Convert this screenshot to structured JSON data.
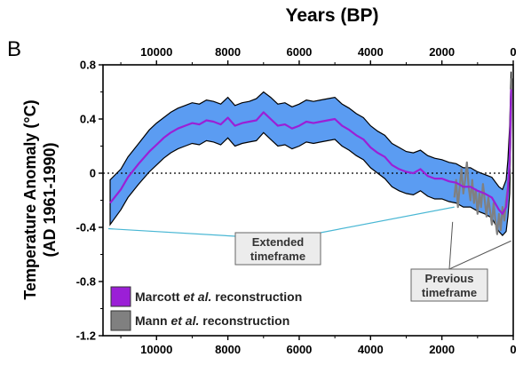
{
  "panel_letter": "B",
  "chart_data": {
    "type": "line",
    "title": "",
    "xlabel": "Years (BP)",
    "ylabel_line1": "Temperature Anomaly (°C)",
    "ylabel_line2": "(AD 1961-1990)",
    "xlim": [
      11500,
      0
    ],
    "ylim": [
      -1.2,
      0.8
    ],
    "x_ticks": [
      10000,
      8000,
      6000,
      4000,
      2000,
      0
    ],
    "x_tick_labels": [
      "10000",
      "8000",
      "6000",
      "4000",
      "2000",
      "0"
    ],
    "y_ticks": [
      0.8,
      0.4,
      0,
      -0.4,
      -0.8,
      -1.2
    ],
    "y_tick_labels": [
      "0.8",
      "0.4",
      "0",
      "-0.4",
      "-0.8",
      "-1.2"
    ],
    "zero_line": true,
    "series": [
      {
        "name": "Marcott et al. reconstruction",
        "color": "#9b1fd6",
        "band_color": "#5b9cf2",
        "x": [
          11300,
          11000,
          10800,
          10500,
          10200,
          10000,
          9800,
          9600,
          9400,
          9200,
          9000,
          8800,
          8600,
          8400,
          8200,
          8000,
          7800,
          7600,
          7400,
          7200,
          7000,
          6800,
          6600,
          6400,
          6200,
          6000,
          5800,
          5600,
          5400,
          5200,
          5000,
          4800,
          4600,
          4400,
          4200,
          4000,
          3800,
          3600,
          3400,
          3200,
          3000,
          2800,
          2600,
          2400,
          2200,
          2000,
          1800,
          1600,
          1400,
          1200,
          1000,
          800,
          600,
          400,
          300,
          200,
          150,
          100,
          60
        ],
        "y": [
          -0.22,
          -0.12,
          -0.03,
          0.07,
          0.16,
          0.21,
          0.26,
          0.3,
          0.33,
          0.35,
          0.37,
          0.36,
          0.39,
          0.38,
          0.36,
          0.41,
          0.35,
          0.37,
          0.38,
          0.39,
          0.45,
          0.4,
          0.35,
          0.36,
          0.33,
          0.35,
          0.38,
          0.37,
          0.38,
          0.39,
          0.4,
          0.35,
          0.32,
          0.28,
          0.25,
          0.19,
          0.15,
          0.12,
          0.06,
          0.03,
          0.01,
          0.0,
          0.03,
          -0.02,
          -0.04,
          -0.04,
          -0.06,
          -0.07,
          -0.1,
          -0.1,
          -0.13,
          -0.15,
          -0.18,
          -0.27,
          -0.3,
          -0.25,
          -0.12,
          0.1,
          0.62
        ],
        "upper": [
          -0.05,
          0.03,
          0.12,
          0.22,
          0.32,
          0.37,
          0.41,
          0.45,
          0.48,
          0.5,
          0.52,
          0.51,
          0.54,
          0.53,
          0.51,
          0.56,
          0.5,
          0.52,
          0.53,
          0.55,
          0.6,
          0.56,
          0.51,
          0.52,
          0.49,
          0.51,
          0.54,
          0.53,
          0.54,
          0.55,
          0.56,
          0.51,
          0.48,
          0.44,
          0.41,
          0.35,
          0.31,
          0.28,
          0.22,
          0.19,
          0.16,
          0.15,
          0.17,
          0.13,
          0.11,
          0.1,
          0.08,
          0.07,
          0.04,
          0.04,
          0.01,
          -0.01,
          -0.03,
          -0.1,
          -0.12,
          -0.05,
          0.1,
          0.35,
          0.75
        ],
        "lower": [
          -0.38,
          -0.27,
          -0.18,
          -0.08,
          0.01,
          0.06,
          0.11,
          0.15,
          0.18,
          0.2,
          0.22,
          0.21,
          0.24,
          0.23,
          0.21,
          0.26,
          0.2,
          0.22,
          0.23,
          0.24,
          0.3,
          0.25,
          0.2,
          0.21,
          0.18,
          0.2,
          0.23,
          0.22,
          0.23,
          0.24,
          0.25,
          0.2,
          0.17,
          0.13,
          0.1,
          0.04,
          0.0,
          -0.04,
          -0.1,
          -0.13,
          -0.15,
          -0.16,
          -0.13,
          -0.17,
          -0.19,
          -0.19,
          -0.21,
          -0.22,
          -0.25,
          -0.25,
          -0.28,
          -0.3,
          -0.33,
          -0.43,
          -0.46,
          -0.43,
          -0.32,
          -0.15,
          0.4
        ]
      },
      {
        "name": "Mann et al. reconstruction",
        "color": "#808080",
        "x": [
          1650,
          1600,
          1550,
          1500,
          1450,
          1400,
          1350,
          1300,
          1250,
          1200,
          1150,
          1100,
          1050,
          1000,
          950,
          900,
          850,
          800,
          750,
          700,
          650,
          600,
          550,
          500,
          450,
          400,
          350,
          300,
          250,
          200,
          150,
          100,
          60,
          40
        ],
        "y": [
          -0.18,
          -0.05,
          -0.25,
          -0.1,
          0.03,
          -0.15,
          -0.05,
          0.08,
          -0.1,
          -0.2,
          -0.05,
          -0.22,
          -0.12,
          -0.3,
          -0.15,
          -0.25,
          -0.08,
          -0.2,
          -0.32,
          -0.18,
          -0.28,
          -0.38,
          -0.22,
          -0.35,
          -0.45,
          -0.3,
          -0.42,
          -0.25,
          -0.35,
          -0.2,
          -0.1,
          0.05,
          0.4,
          0.7
        ]
      }
    ],
    "annotations": [
      {
        "label_line1": "Extended",
        "label_line2": "timeframe"
      },
      {
        "label_line1": "Previous",
        "label_line2": "timeframe"
      }
    ]
  },
  "legend": {
    "items": [
      {
        "prefix": "Marcott ",
        "italic": "et al.",
        "suffix": " reconstruction",
        "color": "#9b1fd6"
      },
      {
        "prefix": "Mann ",
        "italic": "et al.",
        "suffix": " reconstruction",
        "color": "#808080"
      }
    ]
  }
}
